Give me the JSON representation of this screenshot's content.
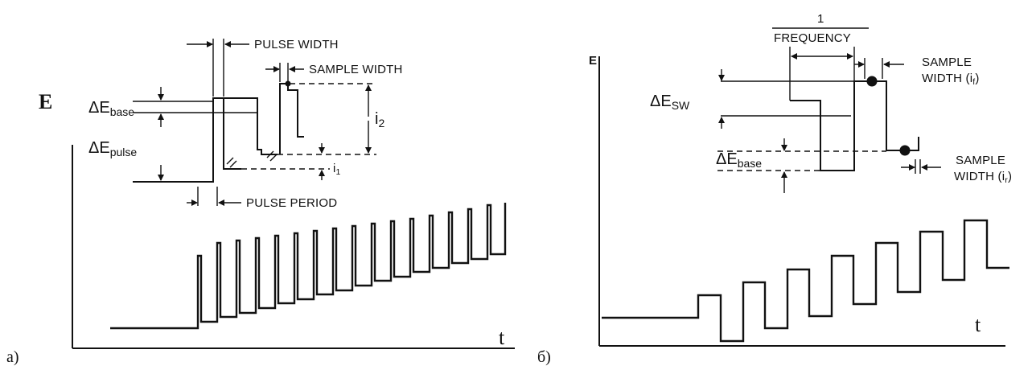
{
  "panel_a": {
    "tag": "a)",
    "y_axis": "E",
    "x_axis": "t",
    "labels": {
      "pulse_width": "PULSE WIDTH",
      "sample_width": "SAMPLE WIDTH",
      "pulse_period": "PULSE PERIOD",
      "delta_base": "ΔE",
      "delta_base_sub": "base",
      "delta_pulse": "ΔE",
      "delta_pulse_sub": "pulse",
      "i2": "i",
      "i2_sub": "2",
      "i1": "i",
      "i1_sub": "1"
    }
  },
  "panel_b": {
    "tag": "б)",
    "y_axis": "E",
    "x_axis": "t",
    "labels": {
      "freq_num": "1",
      "freq_den": "FREQUENCY",
      "sample_width_f": "SAMPLE",
      "sample_width_f2": "WIDTH (i",
      "sample_width_f2_sub": "f",
      "sample_width_r": "SAMPLE",
      "sample_width_r2": "WIDTH (i",
      "sample_width_r2_sub": "r",
      "delta_sw": "ΔE",
      "delta_sw_sub": "SW",
      "delta_base": "ΔE",
      "delta_base_sub": "base"
    }
  }
}
